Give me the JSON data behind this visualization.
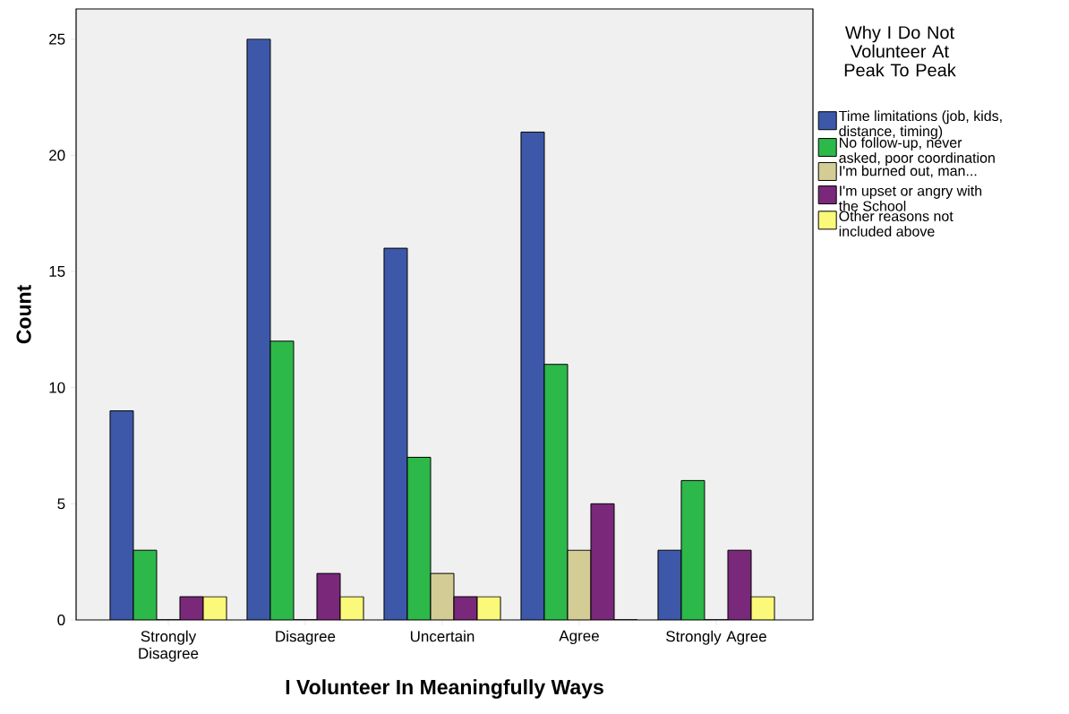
{
  "chart_data": {
    "type": "bar",
    "xlabel": "I Volunteer In Meaningfully Ways",
    "ylabel": "Count",
    "legend_title": "Why I Do Not Volunteer At Peak To Peak",
    "categories": [
      "Strongly Disagree",
      "Disagree",
      "Uncertain",
      "Agree",
      "Strongly Agree"
    ],
    "series": [
      {
        "name": "Time limitations (job, kids, distance, timing)",
        "color": "#3d58a8",
        "values": [
          9,
          25,
          16,
          21,
          3
        ]
      },
      {
        "name": "No follow-up, never asked, poor coordination",
        "color": "#2db84a",
        "values": [
          3,
          12,
          7,
          11,
          6
        ]
      },
      {
        "name": "I'm burned out, man...",
        "color": "#d3cd95",
        "values": [
          0,
          0,
          2,
          3,
          0
        ]
      },
      {
        "name": "I'm upset or angry with the School",
        "color": "#79287a",
        "values": [
          1,
          2,
          1,
          5,
          3
        ]
      },
      {
        "name": "Other reasons not included above",
        "color": "#fbf97a",
        "values": [
          1,
          1,
          1,
          0,
          1
        ]
      }
    ],
    "ylim": [
      0,
      26.3
    ],
    "yticks": [
      0,
      5,
      10,
      15,
      20,
      25
    ],
    "legend": "right"
  }
}
